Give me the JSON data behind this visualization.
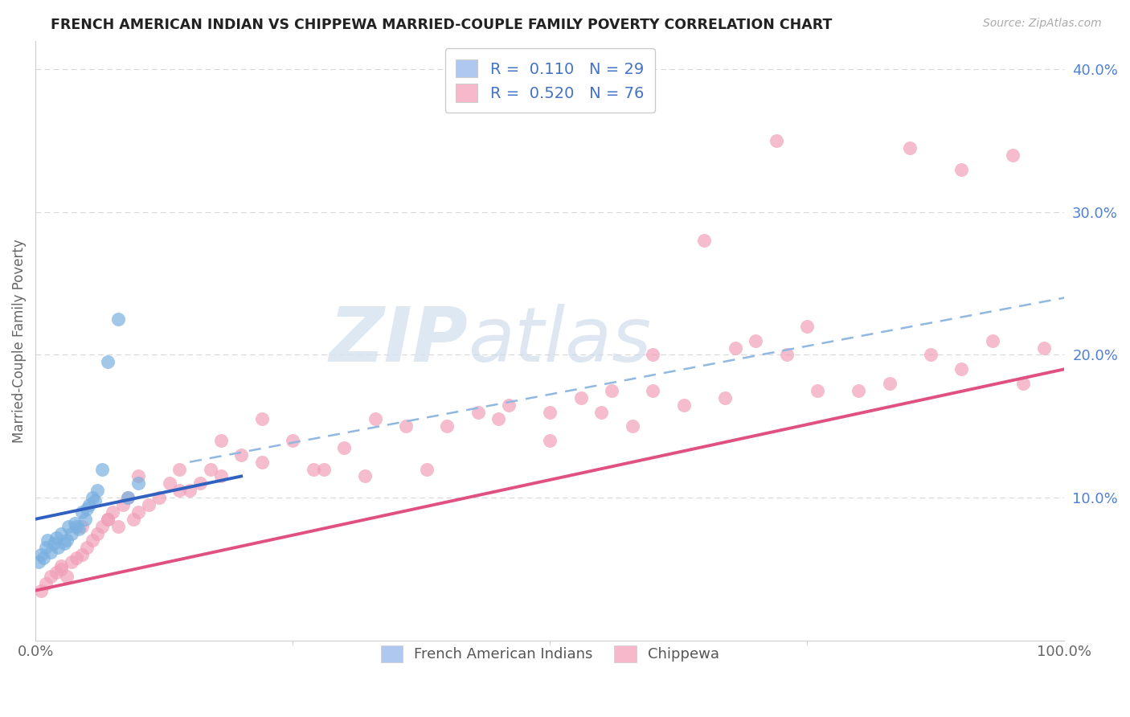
{
  "title": "FRENCH AMERICAN INDIAN VS CHIPPEWA MARRIED-COUPLE FAMILY POVERTY CORRELATION CHART",
  "source": "Source: ZipAtlas.com",
  "ylabel": "Married-Couple Family Poverty",
  "xlim": [
    0,
    100
  ],
  "ylim": [
    0,
    42
  ],
  "y_tick_values": [
    10,
    20,
    30,
    40
  ],
  "y_tick_labels": [
    "10.0%",
    "20.0%",
    "30.0%",
    "40.0%"
  ],
  "x_tick_labels": [
    "0.0%",
    "100.0%"
  ],
  "legend_bottom": [
    "French American Indians",
    "Chippewa"
  ],
  "watermark_zip": "ZIP",
  "watermark_atlas": "atlas",
  "background_color": "#ffffff",
  "scatter_blue_color": "#7ab0e0",
  "scatter_pink_color": "#f0a0b8",
  "line_blue_color": "#3060c0",
  "line_pink_color": "#e05080",
  "dot_line_color": "#90b8e0",
  "grid_color": "#d8d8d8",
  "title_color": "#222222",
  "axis_label_color": "#666666",
  "right_tick_color": "#5080d0",
  "blue_x": [
    0.3,
    0.5,
    0.8,
    1.0,
    1.2,
    1.5,
    1.8,
    2.0,
    2.2,
    2.5,
    2.8,
    3.0,
    3.2,
    3.5,
    3.8,
    4.0,
    4.2,
    4.5,
    4.8,
    5.0,
    5.2,
    5.5,
    5.8,
    6.0,
    6.5,
    7.0,
    8.0,
    9.0,
    10.0
  ],
  "blue_y": [
    5.5,
    6.0,
    5.8,
    6.5,
    7.0,
    6.2,
    6.8,
    7.2,
    6.5,
    7.5,
    6.8,
    7.0,
    8.0,
    7.5,
    8.2,
    8.0,
    7.8,
    9.0,
    8.5,
    9.2,
    9.5,
    10.0,
    9.8,
    10.5,
    12.0,
    19.5,
    22.5,
    10.0,
    11.0
  ],
  "pink_x": [
    0.5,
    1.0,
    1.5,
    2.0,
    2.5,
    3.0,
    3.5,
    4.0,
    4.5,
    5.0,
    5.5,
    6.0,
    6.5,
    7.0,
    7.5,
    8.0,
    8.5,
    9.0,
    9.5,
    10.0,
    11.0,
    12.0,
    13.0,
    14.0,
    15.0,
    16.0,
    17.0,
    18.0,
    20.0,
    22.0,
    25.0,
    28.0,
    30.0,
    33.0,
    36.0,
    40.0,
    43.0,
    46.0,
    50.0,
    53.0,
    56.0,
    60.0,
    63.0,
    67.0,
    70.0,
    73.0,
    76.0,
    80.0,
    83.0,
    87.0,
    90.0,
    93.0,
    96.0,
    98.0,
    65.0,
    72.0,
    85.0,
    90.0,
    95.0,
    55.0,
    60.0,
    68.0,
    75.0,
    58.0,
    45.0,
    50.0,
    38.0,
    32.0,
    27.0,
    22.0,
    18.0,
    14.0,
    10.0,
    7.0,
    4.5,
    2.5
  ],
  "pink_y": [
    3.5,
    4.0,
    4.5,
    4.8,
    5.2,
    4.5,
    5.5,
    5.8,
    6.0,
    6.5,
    7.0,
    7.5,
    8.0,
    8.5,
    9.0,
    8.0,
    9.5,
    10.0,
    8.5,
    9.0,
    9.5,
    10.0,
    11.0,
    10.5,
    10.5,
    11.0,
    12.0,
    11.5,
    13.0,
    12.5,
    14.0,
    12.0,
    13.5,
    15.5,
    15.0,
    15.0,
    16.0,
    16.5,
    16.0,
    17.0,
    17.5,
    17.5,
    16.5,
    17.0,
    21.0,
    20.0,
    17.5,
    17.5,
    18.0,
    20.0,
    19.0,
    21.0,
    18.0,
    20.5,
    28.0,
    35.0,
    34.5,
    33.0,
    34.0,
    16.0,
    20.0,
    20.5,
    22.0,
    15.0,
    15.5,
    14.0,
    12.0,
    11.5,
    12.0,
    15.5,
    14.0,
    12.0,
    11.5,
    8.5,
    8.0,
    5.0
  ],
  "blue_line_x": [
    0,
    20
  ],
  "blue_line_y": [
    8.5,
    11.5
  ],
  "pink_line_x": [
    0,
    100
  ],
  "pink_line_y": [
    3.5,
    19.0
  ],
  "dash_line_x": [
    15,
    100
  ],
  "dash_line_y": [
    12.5,
    24.0
  ]
}
